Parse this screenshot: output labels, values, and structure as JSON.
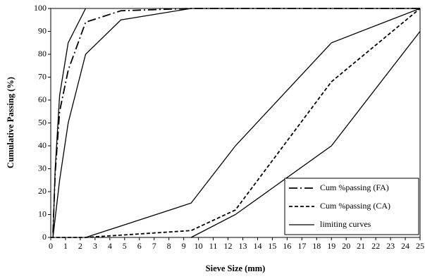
{
  "chart_data": {
    "type": "line",
    "xlabel": "Sieve Size (mm)",
    "ylabel": "Cumulative Passing (%)",
    "xlim": [
      0,
      25
    ],
    "xticks": [
      0,
      1,
      2,
      3,
      4,
      5,
      6,
      7,
      8,
      9,
      10,
      11,
      12,
      13,
      14,
      15,
      16,
      17,
      18,
      19,
      20,
      21,
      22,
      23,
      24,
      25
    ],
    "ylim": [
      0,
      100
    ],
    "yticks": [
      0,
      10,
      20,
      30,
      40,
      50,
      60,
      70,
      80,
      90,
      100
    ],
    "grid": false,
    "legend": "lower right",
    "series": [
      {
        "name": "Cum %passing (FA)",
        "color": "#000000",
        "dash": "dashdot",
        "x": [
          0.15,
          0.3,
          0.6,
          1.18,
          2.36,
          4.75,
          9.5,
          25
        ],
        "values": [
          2,
          28,
          55,
          73,
          94,
          99,
          100,
          100
        ]
      },
      {
        "name": "Cum %passing (CA)",
        "color": "#000000",
        "dash": "dashed",
        "x": [
          0,
          2.36,
          4.75,
          9.5,
          12.5,
          19,
          25
        ],
        "values": [
          0,
          0,
          1,
          3,
          12,
          68,
          100
        ]
      },
      {
        "name": "limiting curves",
        "color": "#000000",
        "dash": "solid",
        "x": [
          0.15,
          0.3,
          0.6,
          1.18,
          2.36,
          null,
          0.15,
          0.6,
          1.18,
          2.36,
          4.75,
          9.5,
          25,
          null,
          2.36,
          4.75,
          9.5,
          12.5,
          19,
          25,
          null,
          9.5,
          12.5,
          19,
          25
        ],
        "values": [
          0,
          30,
          62,
          85,
          100,
          null,
          0,
          25,
          50,
          80,
          95,
          100,
          100,
          null,
          0,
          5,
          15,
          40,
          85,
          100,
          null,
          0,
          10,
          40,
          90
        ]
      }
    ]
  }
}
